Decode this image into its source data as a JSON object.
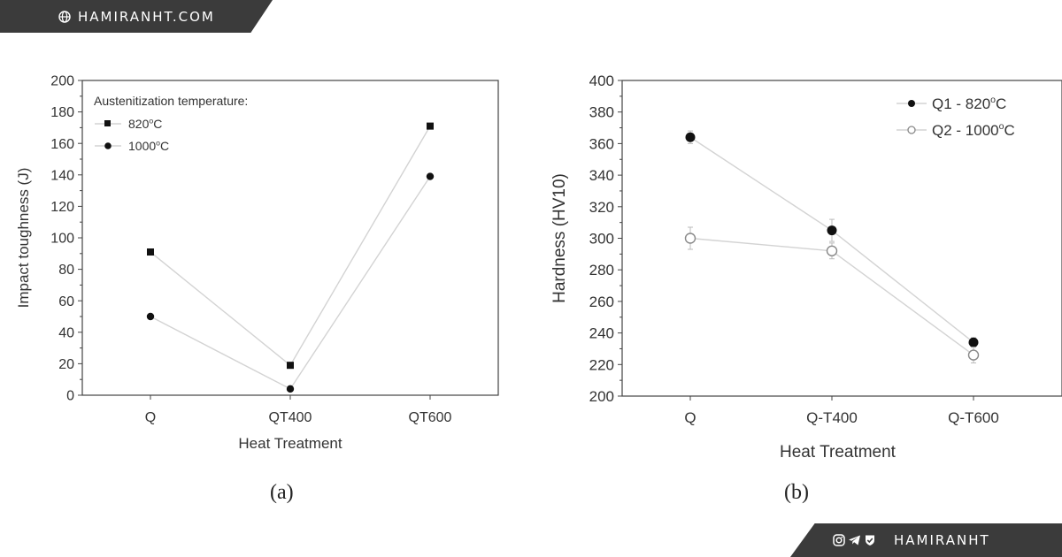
{
  "banner_top": {
    "text": "HAMIRANHT.COM",
    "icon": "globe-icon"
  },
  "banner_bottom": {
    "text": "HAMIRANHT",
    "icons": [
      "instagram-icon",
      "telegram-icon",
      "verified-icon"
    ]
  },
  "colors": {
    "banner_bg": "#3b3b3b",
    "banner_text": "#ffffff",
    "series_line": "#d3d3d3",
    "marker": "#111111"
  },
  "chart_data": [
    {
      "type": "line",
      "caption": "(a)",
      "categories": [
        "Q",
        "QT400",
        "QT600"
      ],
      "xlabel": "Heat Treatment",
      "ylabel": "Impact toughness (J)",
      "ylim": [
        0,
        200
      ],
      "yticks": [
        0,
        20,
        40,
        60,
        80,
        100,
        120,
        140,
        160,
        180,
        200
      ],
      "grid": false,
      "legend_title": "Austenitization temperature:",
      "legend_position": "top-left",
      "series": [
        {
          "name": "820°C",
          "base": "820",
          "sup": "o",
          "unit": "C",
          "marker": "square",
          "values": [
            91,
            19,
            171
          ]
        },
        {
          "name": "1000°C",
          "base": "1000",
          "sup": "o",
          "unit": "C",
          "marker": "circle",
          "values": [
            50,
            4,
            139
          ]
        }
      ]
    },
    {
      "type": "line",
      "caption": "(b)",
      "categories": [
        "Q",
        "Q-T400",
        "Q-T600"
      ],
      "xlabel": "Heat Treatment",
      "ylabel": "Hardness (HV10)",
      "ylim": [
        200,
        400
      ],
      "yticks": [
        200,
        220,
        240,
        260,
        280,
        300,
        320,
        340,
        360,
        380,
        400
      ],
      "grid": false,
      "legend_position": "top-right",
      "series": [
        {
          "name": "Q1 - 820°C",
          "base": "Q1 - 820",
          "sup": "o",
          "unit": "C",
          "marker": "filled-circle",
          "values": [
            364,
            305,
            234
          ],
          "errors": [
            4,
            7,
            3
          ]
        },
        {
          "name": "Q2 - 1000°C",
          "base": "Q2 - 1000",
          "sup": "o",
          "unit": "C",
          "marker": "open-circle",
          "values": [
            300,
            292,
            226
          ],
          "errors": [
            7,
            5,
            5
          ]
        }
      ]
    }
  ]
}
